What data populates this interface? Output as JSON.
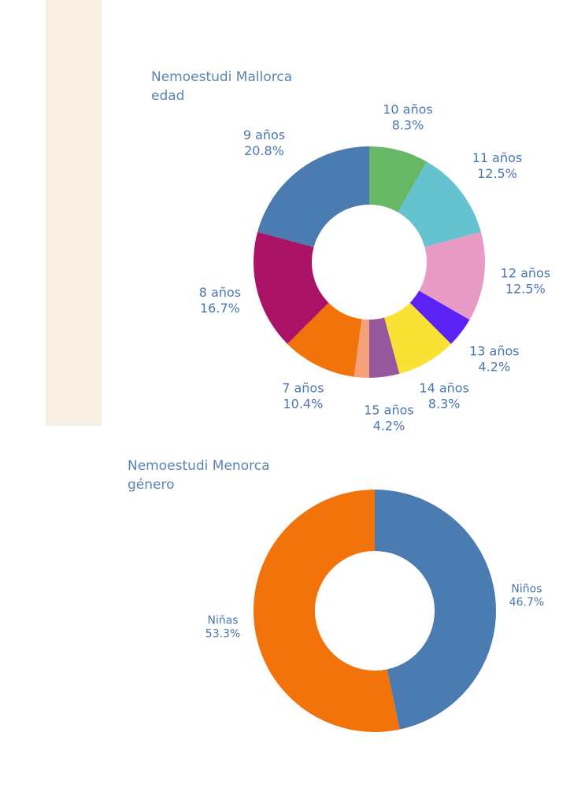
{
  "chart_data": [
    {
      "type": "pie",
      "title": "Nemoestudi Mallorca",
      "subtitle": "edad",
      "donut": true,
      "categories": [
        "10 años",
        "11 años",
        "12 años",
        "13 años",
        "14 años",
        "15 años",
        "",
        "7 años",
        "8 años",
        "9 años"
      ],
      "percent_labels": [
        "8.3%",
        "12.5%",
        "12.5%",
        "4.2%",
        "8.3%",
        "4.2%",
        "",
        "10.4%",
        "16.7%",
        "20.8%"
      ],
      "values": [
        8.3,
        12.5,
        12.5,
        4.2,
        8.3,
        4.2,
        2.1,
        10.4,
        16.7,
        20.8
      ],
      "colors": [
        "#66b866",
        "#65c3cf",
        "#e89bc5",
        "#5a22f5",
        "#f9e233",
        "#96579c",
        "#f4a17c",
        "#f2730a",
        "#a91265",
        "#4a7cb2"
      ]
    },
    {
      "type": "pie",
      "title": "Nemoestudi Menorca",
      "subtitle": "género",
      "donut": true,
      "categories": [
        "Niños",
        "Niñas"
      ],
      "percent_labels": [
        "46.7%",
        "53.3%"
      ],
      "values": [
        46.7,
        53.3
      ],
      "colors": [
        "#4a7cb2",
        "#f2730a"
      ]
    }
  ]
}
